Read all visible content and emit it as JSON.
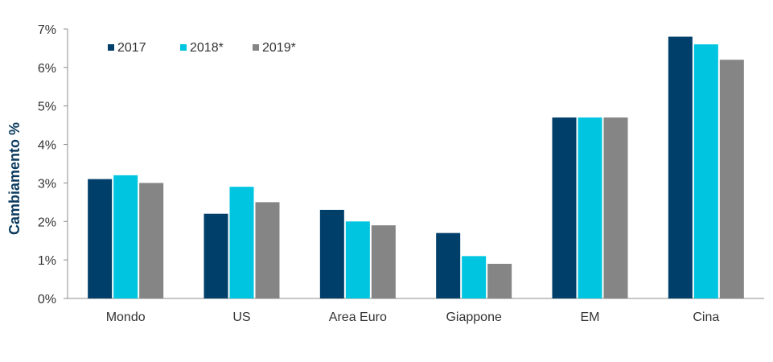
{
  "chart_data": {
    "type": "bar",
    "title": "",
    "xlabel": "",
    "ylabel": "Cambiamento %",
    "ylim": [
      0,
      7
    ],
    "yticks": [
      "0%",
      "1%",
      "2%",
      "3%",
      "4%",
      "5%",
      "6%",
      "7%"
    ],
    "grid": false,
    "legend_position": "top-left",
    "categories": [
      "Mondo",
      "US",
      "Area Euro",
      "Giappone",
      "EM",
      "Cina"
    ],
    "series": [
      {
        "name": "2017",
        "color": "#003f6a",
        "values": [
          3.1,
          2.2,
          2.3,
          1.7,
          4.7,
          6.8
        ]
      },
      {
        "name": "2018*",
        "color": "#00c5e0",
        "values": [
          3.2,
          2.9,
          2.0,
          1.1,
          4.7,
          6.6
        ]
      },
      {
        "name": "2019*",
        "color": "#858585",
        "values": [
          3.0,
          2.5,
          1.9,
          0.9,
          4.7,
          6.2
        ]
      }
    ]
  }
}
